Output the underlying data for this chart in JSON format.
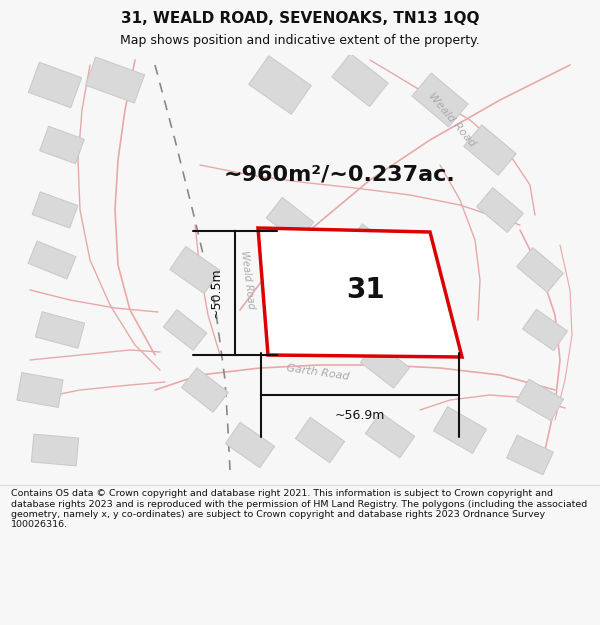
{
  "title": "31, WEALD ROAD, SEVENOAKS, TN13 1QQ",
  "subtitle": "Map shows position and indicative extent of the property.",
  "area_text": "~960m²/~0.237ac.",
  "label_31": "31",
  "dim_width": "~56.9m",
  "dim_height": "~50.5m",
  "road_label_weald": "Weald Road",
  "road_label_garth": "Garth Road",
  "footer": "Contains OS data © Crown copyright and database right 2021. This information is subject to Crown copyright and database rights 2023 and is reproduced with the permission of HM Land Registry. The polygons (including the associated geometry, namely x, y co-ordinates) are subject to Crown copyright and database rights 2023 Ordnance Survey 100026316.",
  "bg_color": "#f7f7f7",
  "map_bg": "#f0efef",
  "plot_color": "#dd0000",
  "road_line_color": "#e8a8a8",
  "building_color": "#d9d9d9",
  "building_edge": "#c8c8c8",
  "road_name_color": "#aaaaaa",
  "dim_color": "#111111",
  "dashed_line_color": "#888888",
  "title_color": "#111111",
  "footer_color": "#111111",
  "area_color": "#111111",
  "title_fontsize": 11,
  "subtitle_fontsize": 9,
  "area_fontsize": 16,
  "label31_fontsize": 20,
  "dim_fontsize": 9,
  "road_label_fontsize": 8,
  "footer_fontsize": 6.8
}
